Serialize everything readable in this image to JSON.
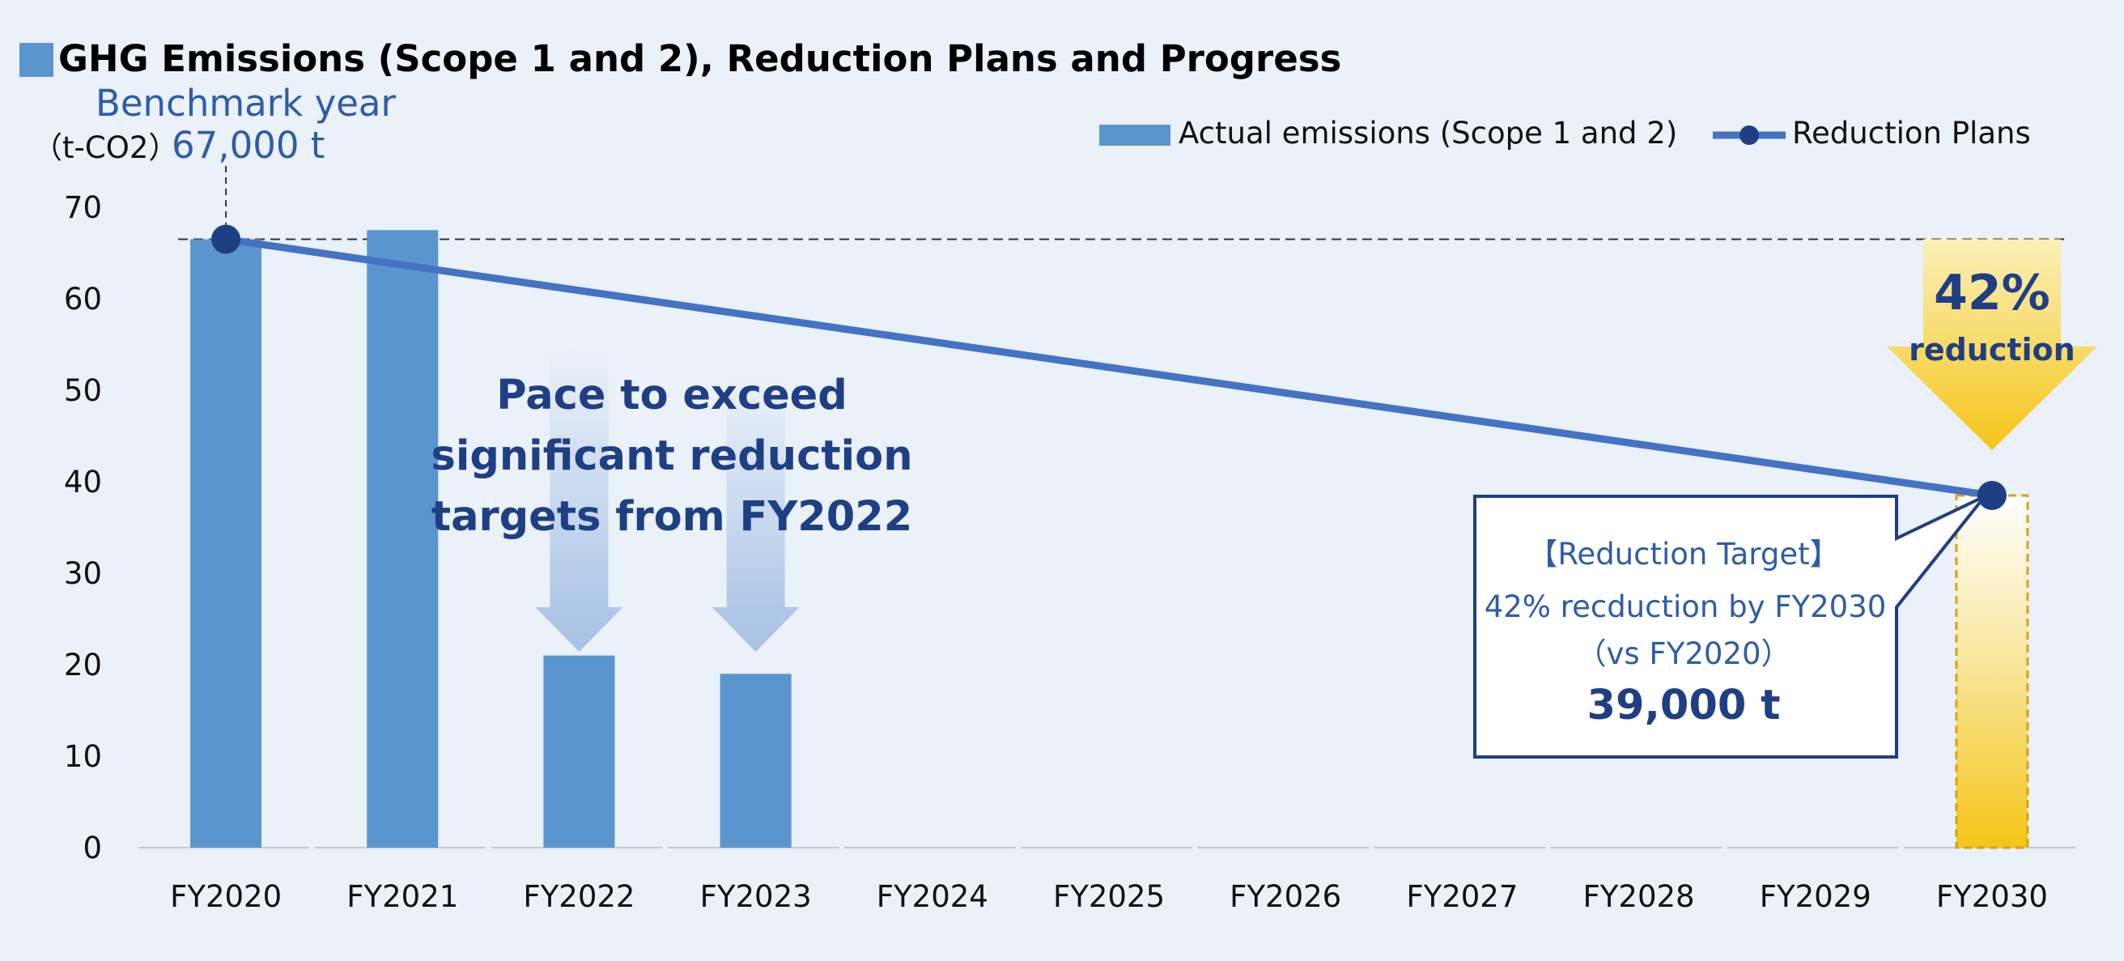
{
  "chart_data": {
    "type": "bar",
    "title": "GHG Emissions (Scope 1 and 2), Reduction Plans and Progress",
    "ylabel": "（t-CO2）",
    "ylim": [
      0,
      70
    ],
    "yticks": [
      0,
      10,
      20,
      30,
      40,
      50,
      60,
      70
    ],
    "grid": false,
    "legend_position": "top-right",
    "categories": [
      "FY2020",
      "FY2021",
      "FY2022",
      "FY2023",
      "FY2024",
      "FY2025",
      "FY2026",
      "FY2027",
      "FY2028",
      "FY2029",
      "FY2030"
    ],
    "series": [
      {
        "name": "Actual emissions (Scope 1 and 2)",
        "type": "bar",
        "color": "#5b95cf",
        "values": [
          66.5,
          67.5,
          21,
          19,
          null,
          null,
          null,
          null,
          null,
          null,
          null
        ]
      },
      {
        "name": "Reduction Plans",
        "type": "line",
        "color": "#4472c4",
        "marker_color": "#1f3f85",
        "points": [
          {
            "x": "FY2020",
            "y": 66.5
          },
          {
            "x": "FY2030",
            "y": 38.5
          }
        ]
      }
    ],
    "target_bar": {
      "category": "FY2030",
      "value": 38.5,
      "color": "#f5c518"
    },
    "benchmark_line": {
      "value": 66.5
    },
    "annotations": {
      "benchmark_label": "Benchmark year",
      "benchmark_value": "67,000 t",
      "pace_text": [
        "Pace to exceed",
        "significant reduction",
        "targets from FY2022"
      ],
      "reduction_percent": "42%",
      "reduction_word": "reduction",
      "target_title": "【Reduction Target】",
      "target_line1": "42% recduction by FY2030",
      "target_line2": "（vs FY2020）",
      "target_value": "39,000 t"
    },
    "colors": {
      "title": "#000000",
      "annotation_blue": "#1f3f85",
      "annotation_light_blue": "#2e5ca8",
      "title_marker": "#5b95cf"
    }
  }
}
